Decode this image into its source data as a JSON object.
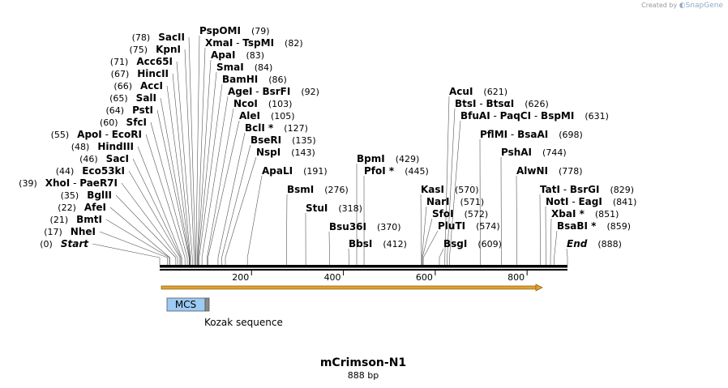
{
  "credit": {
    "prefix": "Created by",
    "brand": "SnapGene"
  },
  "sequence": {
    "name": "mCrimson-N1",
    "length_label": "888 bp",
    "length": 888
  },
  "ruler": {
    "ticks": [
      200,
      400,
      600,
      800
    ]
  },
  "features": [
    {
      "name": "MCS",
      "type": "misc",
      "color": "#9ccbf5"
    },
    {
      "name": "Kozak sequence",
      "type": "label"
    }
  ],
  "orf": {
    "direction": "forward",
    "color": "#e0a030"
  },
  "sites": [
    {
      "pos_label": "(0)",
      "names": [
        "Start"
      ],
      "italic": true,
      "star": false,
      "pos": 0
    },
    {
      "pos_label": "(17)",
      "names": [
        "NheI"
      ],
      "pos": 17
    },
    {
      "pos_label": "(21)",
      "names": [
        "BmtI"
      ],
      "pos": 21
    },
    {
      "pos_label": "(22)",
      "names": [
        "AfeI"
      ],
      "pos": 22
    },
    {
      "pos_label": "(35)",
      "names": [
        "BglII"
      ],
      "pos": 35
    },
    {
      "pos_label": "(39)",
      "names": [
        "XhoI",
        "PaeR7I"
      ],
      "pos": 39
    },
    {
      "pos_label": "(44)",
      "names": [
        "Eco53kI"
      ],
      "pos": 44
    },
    {
      "pos_label": "(46)",
      "names": [
        "SacI"
      ],
      "pos": 46
    },
    {
      "pos_label": "(48)",
      "names": [
        "HindIII"
      ],
      "pos": 48
    },
    {
      "pos_label": "(55)",
      "names": [
        "ApoI",
        "EcoRI"
      ],
      "pos": 55
    },
    {
      "pos_label": "(60)",
      "names": [
        "SfcI"
      ],
      "pos": 60
    },
    {
      "pos_label": "(64)",
      "names": [
        "PstI"
      ],
      "pos": 64
    },
    {
      "pos_label": "(65)",
      "names": [
        "SalI"
      ],
      "pos": 65
    },
    {
      "pos_label": "(66)",
      "names": [
        "AccI"
      ],
      "pos": 66
    },
    {
      "pos_label": "(67)",
      "names": [
        "HincII"
      ],
      "pos": 67
    },
    {
      "pos_label": "(71)",
      "names": [
        "Acc65I"
      ],
      "pos": 71
    },
    {
      "pos_label": "(75)",
      "names": [
        "KpnI"
      ],
      "pos": 75
    },
    {
      "pos_label": "(78)",
      "names": [
        "SacII"
      ],
      "pos": 78
    },
    {
      "pos_label": "(79)",
      "names": [
        "PspOMI"
      ],
      "pos": 79
    },
    {
      "pos_label": "(82)",
      "names": [
        "XmaI",
        "TspMI"
      ],
      "pos": 82
    },
    {
      "pos_label": "(83)",
      "names": [
        "ApaI"
      ],
      "pos": 83
    },
    {
      "pos_label": "(84)",
      "names": [
        "SmaI"
      ],
      "pos": 84
    },
    {
      "pos_label": "(86)",
      "names": [
        "BamHI"
      ],
      "pos": 86
    },
    {
      "pos_label": "(92)",
      "names": [
        "AgeI",
        "BsrFI"
      ],
      "pos": 92
    },
    {
      "pos_label": "(103)",
      "names": [
        "NcoI"
      ],
      "pos": 103
    },
    {
      "pos_label": "(105)",
      "names": [
        "AleI"
      ],
      "pos": 105
    },
    {
      "pos_label": "(127)",
      "names": [
        "BclI"
      ],
      "star": true,
      "pos": 127
    },
    {
      "pos_label": "(135)",
      "names": [
        "BseRI"
      ],
      "pos": 135
    },
    {
      "pos_label": "(143)",
      "names": [
        "NspI"
      ],
      "pos": 143
    },
    {
      "pos_label": "(191)",
      "names": [
        "ApaLI"
      ],
      "pos": 191
    },
    {
      "pos_label": "(276)",
      "names": [
        "BsmI"
      ],
      "pos": 276
    },
    {
      "pos_label": "(318)",
      "names": [
        "StuI"
      ],
      "pos": 318
    },
    {
      "pos_label": "(370)",
      "names": [
        "Bsu36I"
      ],
      "pos": 370
    },
    {
      "pos_label": "(412)",
      "names": [
        "BbsI"
      ],
      "pos": 412
    },
    {
      "pos_label": "(429)",
      "names": [
        "BpmI"
      ],
      "pos": 429
    },
    {
      "pos_label": "(445)",
      "names": [
        "PfoI"
      ],
      "star": true,
      "pos": 445
    },
    {
      "pos_label": "(570)",
      "names": [
        "KasI"
      ],
      "pos": 570
    },
    {
      "pos_label": "(571)",
      "names": [
        "NarI"
      ],
      "pos": 571
    },
    {
      "pos_label": "(572)",
      "names": [
        "SfoI"
      ],
      "pos": 572
    },
    {
      "pos_label": "(574)",
      "names": [
        "PluTI"
      ],
      "pos": 574
    },
    {
      "pos_label": "(609)",
      "names": [
        "BsgI"
      ],
      "pos": 609
    },
    {
      "pos_label": "(621)",
      "names": [
        "AcuI"
      ],
      "pos": 621
    },
    {
      "pos_label": "(626)",
      "names": [
        "BtsI",
        "BtsαI"
      ],
      "pos": 626
    },
    {
      "pos_label": "(631)",
      "names": [
        "BfuAI",
        "PaqCI",
        "BspMI"
      ],
      "pos": 631
    },
    {
      "pos_label": "(698)",
      "names": [
        "PflMI",
        "BsaAI"
      ],
      "pos": 698
    },
    {
      "pos_label": "(744)",
      "names": [
        "PshAI"
      ],
      "pos": 744
    },
    {
      "pos_label": "(778)",
      "names": [
        "AlwNI"
      ],
      "pos": 778
    },
    {
      "pos_label": "(829)",
      "names": [
        "TatI",
        "BsrGI"
      ],
      "pos": 829
    },
    {
      "pos_label": "(841)",
      "names": [
        "NotI",
        "EagI"
      ],
      "pos": 841
    },
    {
      "pos_label": "(851)",
      "names": [
        "XbaI"
      ],
      "star": true,
      "pos": 851
    },
    {
      "pos_label": "(859)",
      "names": [
        "BsaBI"
      ],
      "star": true,
      "pos": 859
    },
    {
      "pos_label": "(888)",
      "names": [
        "End"
      ],
      "italic": true,
      "pos": 888
    }
  ]
}
